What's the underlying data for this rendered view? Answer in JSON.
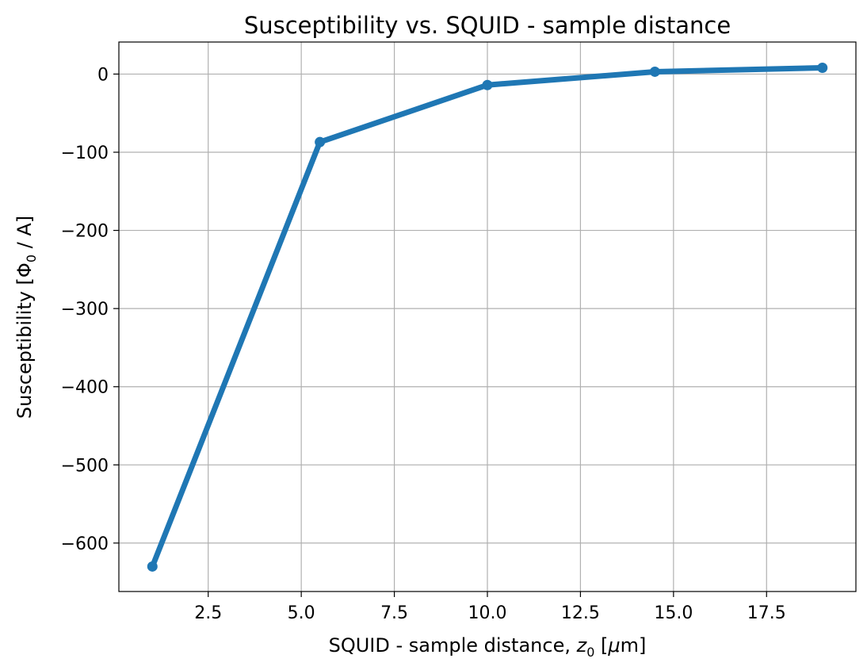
{
  "chart_data": {
    "type": "line",
    "title": "Susceptibility vs. SQUID - sample distance",
    "xlabel": {
      "prefix": "SQUID - sample distance, ",
      "symbol": "z",
      "subscript": "0",
      "unit_open": " [",
      "unit_symbol": "μ",
      "unit_rest": "m]"
    },
    "ylabel": {
      "prefix": "Susceptibility [",
      "symbol": "Φ",
      "subscript": "0",
      "suffix": " / A]"
    },
    "x": [
      1.0,
      5.5,
      10.0,
      14.5,
      19.0
    ],
    "series": [
      {
        "values": [
          -630,
          -87,
          -14,
          3,
          8
        ]
      }
    ],
    "xlim": [
      0.1,
      19.9
    ],
    "ylim": [
      -662,
      41
    ],
    "xticks": [
      2.5,
      5.0,
      7.5,
      10.0,
      12.5,
      15.0,
      17.5
    ],
    "xtick_labels": [
      "2.5",
      "5.0",
      "7.5",
      "10.0",
      "12.5",
      "15.0",
      "17.5"
    ],
    "yticks": [
      0,
      -100,
      -200,
      -300,
      -400,
      -500,
      -600
    ],
    "ytick_labels": [
      "0",
      "−100",
      "−200",
      "−300",
      "−400",
      "−500",
      "−600"
    ],
    "grid": true,
    "line_color": "#1f77b4",
    "marker": "circle"
  }
}
